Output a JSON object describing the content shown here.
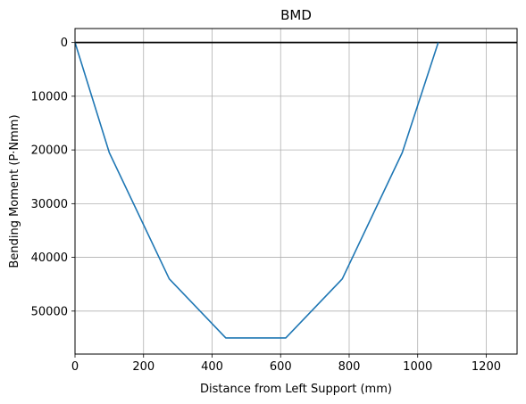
{
  "chart_data": {
    "type": "line",
    "title": "BMD",
    "xlabel": "Distance from Left Support (mm)",
    "ylabel": "Bending Moment (P·Nmm)",
    "xlim": [
      0,
      1290
    ],
    "ylim": [
      58000,
      -2600
    ],
    "y_axis_inverted": true,
    "grid": true,
    "x_ticks": [
      0,
      200,
      400,
      600,
      800,
      1000,
      1200
    ],
    "x_tick_labels": [
      "0",
      "200",
      "400",
      "600",
      "800",
      "1000",
      "1200"
    ],
    "y_ticks": [
      0,
      10000,
      20000,
      30000,
      40000,
      50000
    ],
    "y_tick_labels": [
      "0",
      "10000",
      "20000",
      "30000",
      "40000",
      "50000"
    ],
    "reference_line": {
      "y": 0,
      "color": "#000000"
    },
    "series": [
      {
        "color": "#1f77b4",
        "x": [
          0,
          100,
          275,
          440,
          615,
          780,
          955,
          1060
        ],
        "y": [
          0,
          20500,
          44000,
          55000,
          55000,
          44000,
          20500,
          0
        ]
      }
    ]
  }
}
